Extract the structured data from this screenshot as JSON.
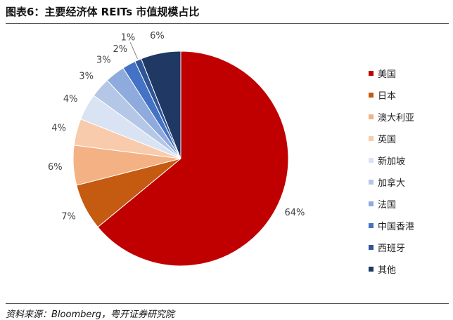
{
  "title": "图表6：主要经济体 REITs 市值规模占比",
  "source": "资料来源：Bloomberg，粤开证券研究院",
  "chart_data": {
    "type": "pie",
    "title": "图表6：主要经济体 REITs 市值规模占比",
    "categories": [
      "美国",
      "日本",
      "澳大利亚",
      "英国",
      "新加坡",
      "加拿大",
      "法国",
      "中国香港",
      "西班牙",
      "其他"
    ],
    "values": [
      64,
      7,
      6,
      4,
      4,
      3,
      3,
      2,
      1,
      6
    ],
    "labels": [
      "64%",
      "7%",
      "6%",
      "4%",
      "4%",
      "3%",
      "3%",
      "2%",
      "1%",
      "6%"
    ],
    "colors": [
      "#c00000",
      "#c55a11",
      "#f4b183",
      "#f8cbad",
      "#dae3f3",
      "#b4c7e7",
      "#8faadc",
      "#4472c4",
      "#2f5597",
      "#1f3864"
    ],
    "legend_position": "right"
  }
}
